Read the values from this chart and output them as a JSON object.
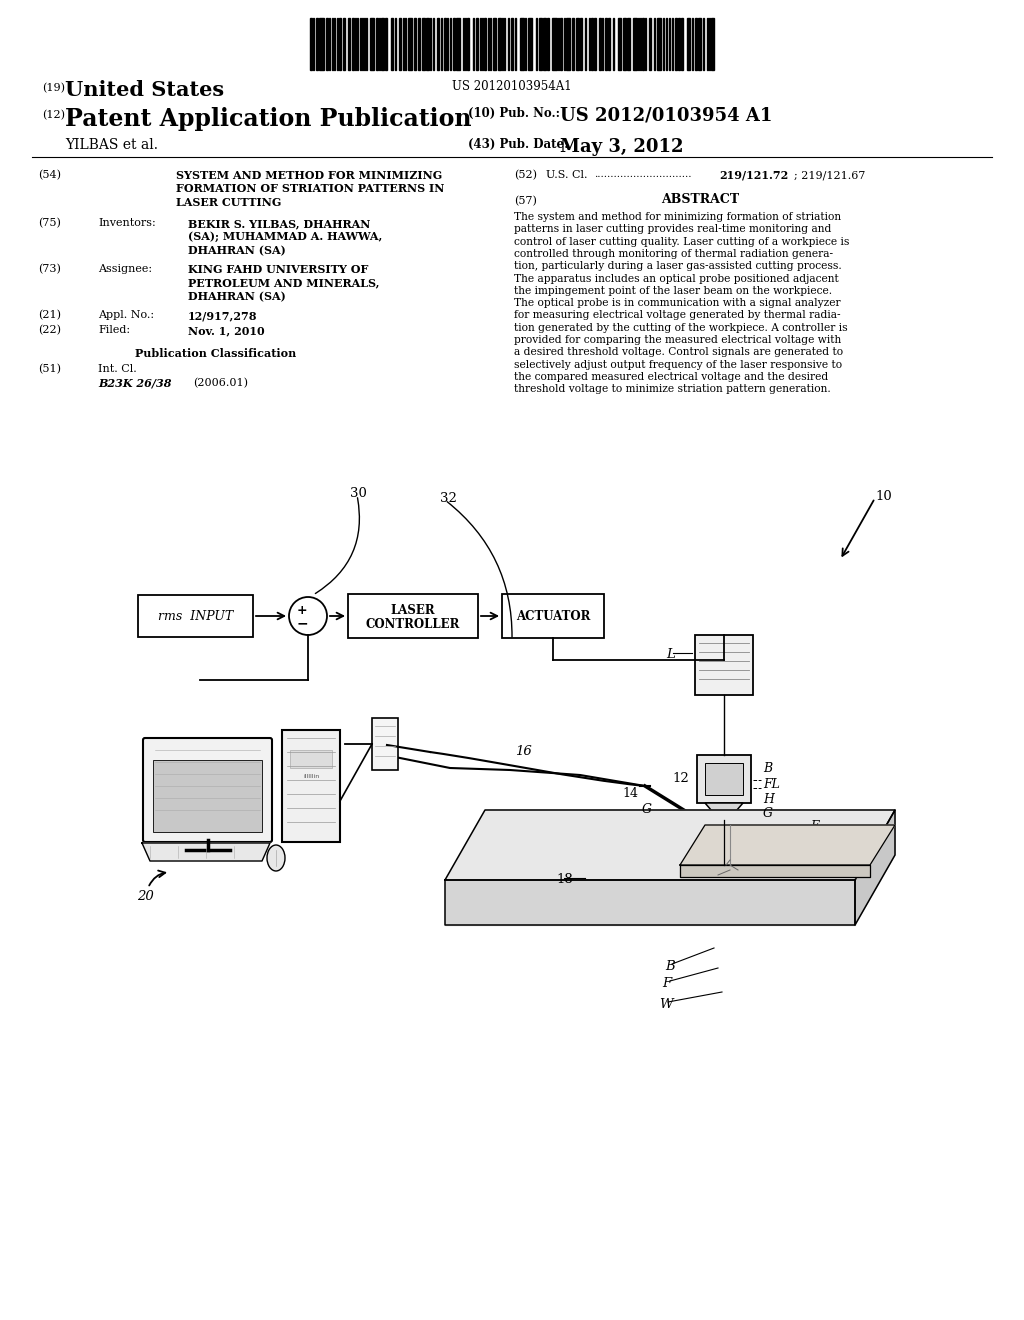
{
  "bg_color": "#ffffff",
  "barcode_text": "US 20120103954A1",
  "header_19_label": "(19)",
  "header_19_text": "United States",
  "header_12_label": "(12)",
  "header_12_text": "Patent Application Publication",
  "header_10_label": "(10) Pub. No.:",
  "header_10_value": "US 2012/0103954 A1",
  "header_43_label": "(43) Pub. Date:",
  "header_43_value": "May 3, 2012",
  "applicant_line": "YILBAS et al.",
  "field_54_label": "(54)",
  "field_54_title_lines": [
    "SYSTEM AND METHOD FOR MINIMIZING",
    "FORMATION OF STRIATION PATTERNS IN",
    "LASER CUTTING"
  ],
  "field_52_label": "(52)",
  "field_75_label": "(75)",
  "field_75_name": "Inventors:",
  "field_75_lines": [
    "BEKIR S. YILBAS, DHAHRAN",
    "(SA); MUHAMMAD A. HAWWA,",
    "DHAHRAN (SA)"
  ],
  "field_73_label": "(73)",
  "field_73_name": "Assignee:",
  "field_73_lines": [
    "KING FAHD UNIVERSITY OF",
    "PETROLEUM AND MINERALS,",
    "DHAHRAN (SA)"
  ],
  "field_21_label": "(21)",
  "field_21_name": "Appl. No.:",
  "field_21_value": "12/917,278",
  "field_22_label": "(22)",
  "field_22_name": "Filed:",
  "field_22_value": "Nov. 1, 2010",
  "pub_class_header": "Publication Classification",
  "field_51_label": "(51)",
  "field_51_name": "Int. Cl.",
  "field_51_class": "B23K 26/38",
  "field_51_year": "(2006.01)",
  "field_57_label": "(57)",
  "field_57_title": "ABSTRACT",
  "abstract_lines": [
    "The system and method for minimizing formation of striation",
    "patterns in laser cutting provides real-time monitoring and",
    "control of laser cutting quality. Laser cutting of a workpiece is",
    "controlled through monitoring of thermal radiation genera-",
    "tion, particularly during a laser gas-assisted cutting process.",
    "The apparatus includes an optical probe positioned adjacent",
    "the impingement point of the laser beam on the workpiece.",
    "The optical probe is in communication with a signal analyzer",
    "for measuring electrical voltage generated by thermal radia-",
    "tion generated by the cutting of the workpiece. A controller is",
    "provided for comparing the measured electrical voltage with",
    "a desired threshold voltage. Control signals are generated to",
    "selectively adjust output frequency of the laser responsive to",
    "the compared measured electrical voltage and the desired",
    "threshold voltage to minimize striation pattern generation."
  ]
}
